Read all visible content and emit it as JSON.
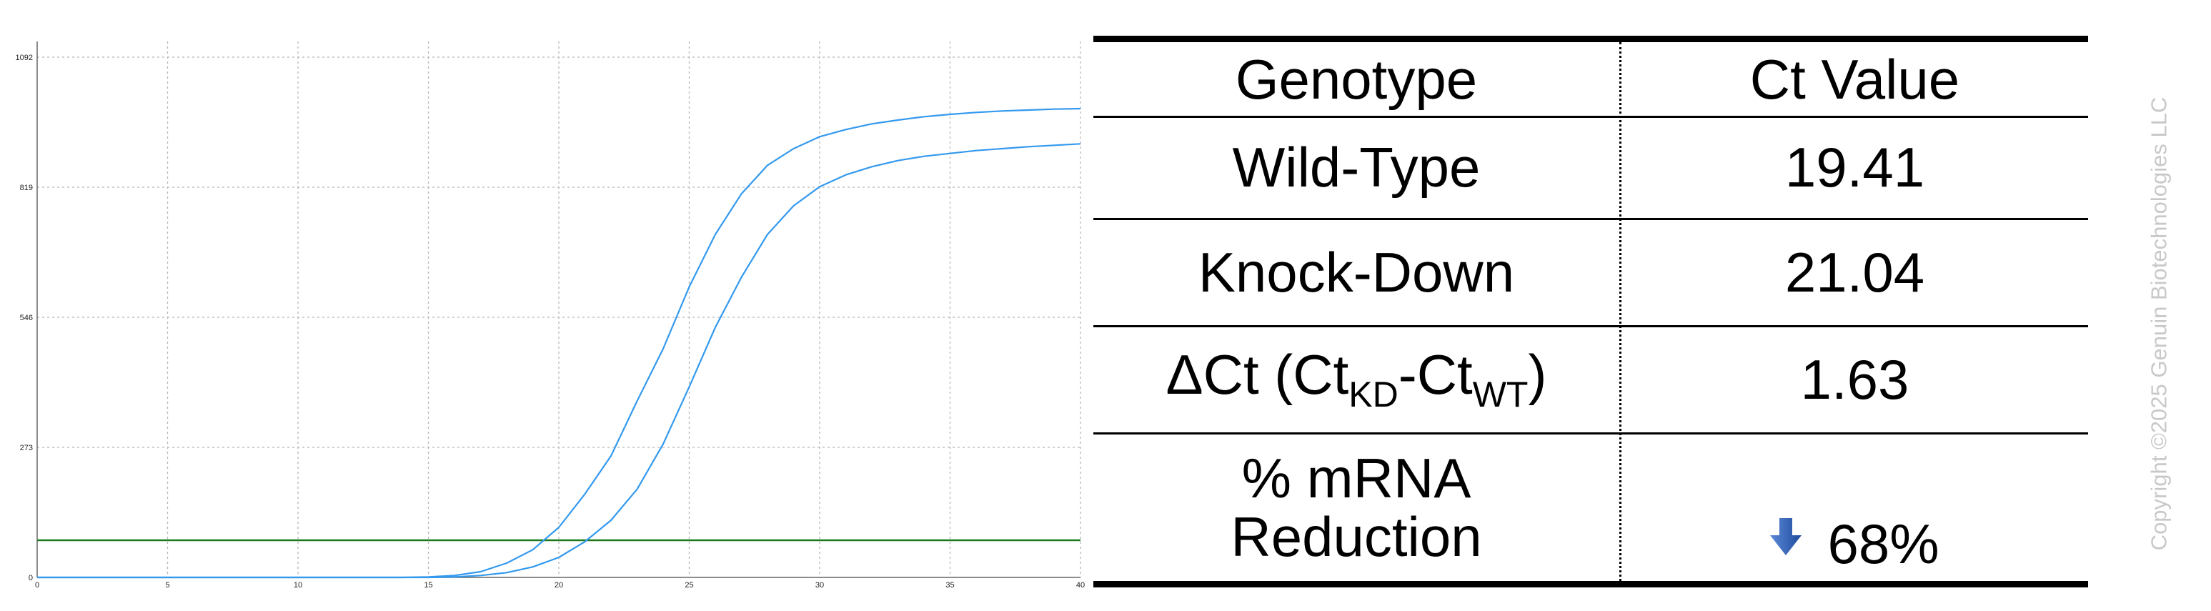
{
  "chart_data": {
    "type": "line",
    "xlim": [
      0,
      40
    ],
    "ylim": [
      0,
      1092
    ],
    "x_ticks": [
      0,
      5,
      10,
      15,
      20,
      25,
      30,
      35,
      40
    ],
    "y_ticks": [
      0,
      273,
      546,
      819,
      1092
    ],
    "grid": true,
    "threshold": {
      "y": 78,
      "color": "#1a7a1a"
    },
    "series": [
      {
        "color": "#3399ee",
        "x": [
          0,
          1,
          2,
          3,
          4,
          5,
          6,
          7,
          8,
          9,
          10,
          11,
          12,
          13,
          14,
          15,
          16,
          17,
          18,
          19,
          20,
          21,
          22,
          23,
          24,
          25,
          26,
          27,
          28,
          29,
          30,
          31,
          32,
          33,
          34,
          35,
          36,
          37,
          38,
          39,
          40
        ],
        "y": [
          0,
          0,
          0,
          0,
          0,
          0,
          0,
          0,
          0,
          0,
          0,
          0,
          0,
          0,
          0,
          1,
          4,
          12,
          30,
          58,
          105,
          175,
          255,
          370,
          480,
          610,
          720,
          805,
          865,
          900,
          925,
          940,
          952,
          960,
          967,
          972,
          976,
          979,
          981,
          983,
          984
        ]
      },
      {
        "color": "#3399ee",
        "x": [
          0,
          1,
          2,
          3,
          4,
          5,
          6,
          7,
          8,
          9,
          10,
          11,
          12,
          13,
          14,
          15,
          16,
          17,
          18,
          19,
          20,
          21,
          22,
          23,
          24,
          25,
          26,
          27,
          28,
          29,
          30,
          31,
          32,
          33,
          34,
          35,
          36,
          37,
          38,
          39,
          40
        ],
        "y": [
          0,
          0,
          0,
          0,
          0,
          0,
          0,
          0,
          0,
          0,
          0,
          0,
          0,
          0,
          0,
          0,
          1,
          4,
          10,
          22,
          42,
          75,
          120,
          185,
          280,
          400,
          525,
          630,
          720,
          780,
          820,
          845,
          862,
          875,
          884,
          890,
          896,
          900,
          904,
          907,
          910
        ]
      }
    ]
  },
  "table": {
    "headers": [
      "Genotype",
      "Ct Value"
    ],
    "rows": [
      {
        "genotype": "Wild-Type",
        "ct": "19.41"
      },
      {
        "genotype": "Knock-Down",
        "ct": "21.04"
      },
      {
        "delta_main": "ΔCt (Ct",
        "delta_sub1": "KD",
        "delta_mid": "-Ct",
        "delta_sub2": "WT",
        "delta_end": ")",
        "ct": "1.63"
      },
      {
        "genotype_line1": "% mRNA",
        "genotype_line2": "Reduction",
        "ct": "68%",
        "icon": "arrow-down-icon",
        "icon_color": "#2f5fb3"
      }
    ]
  },
  "watermark": "Copyright ©2025 Genuin Biotechnologies LLC"
}
